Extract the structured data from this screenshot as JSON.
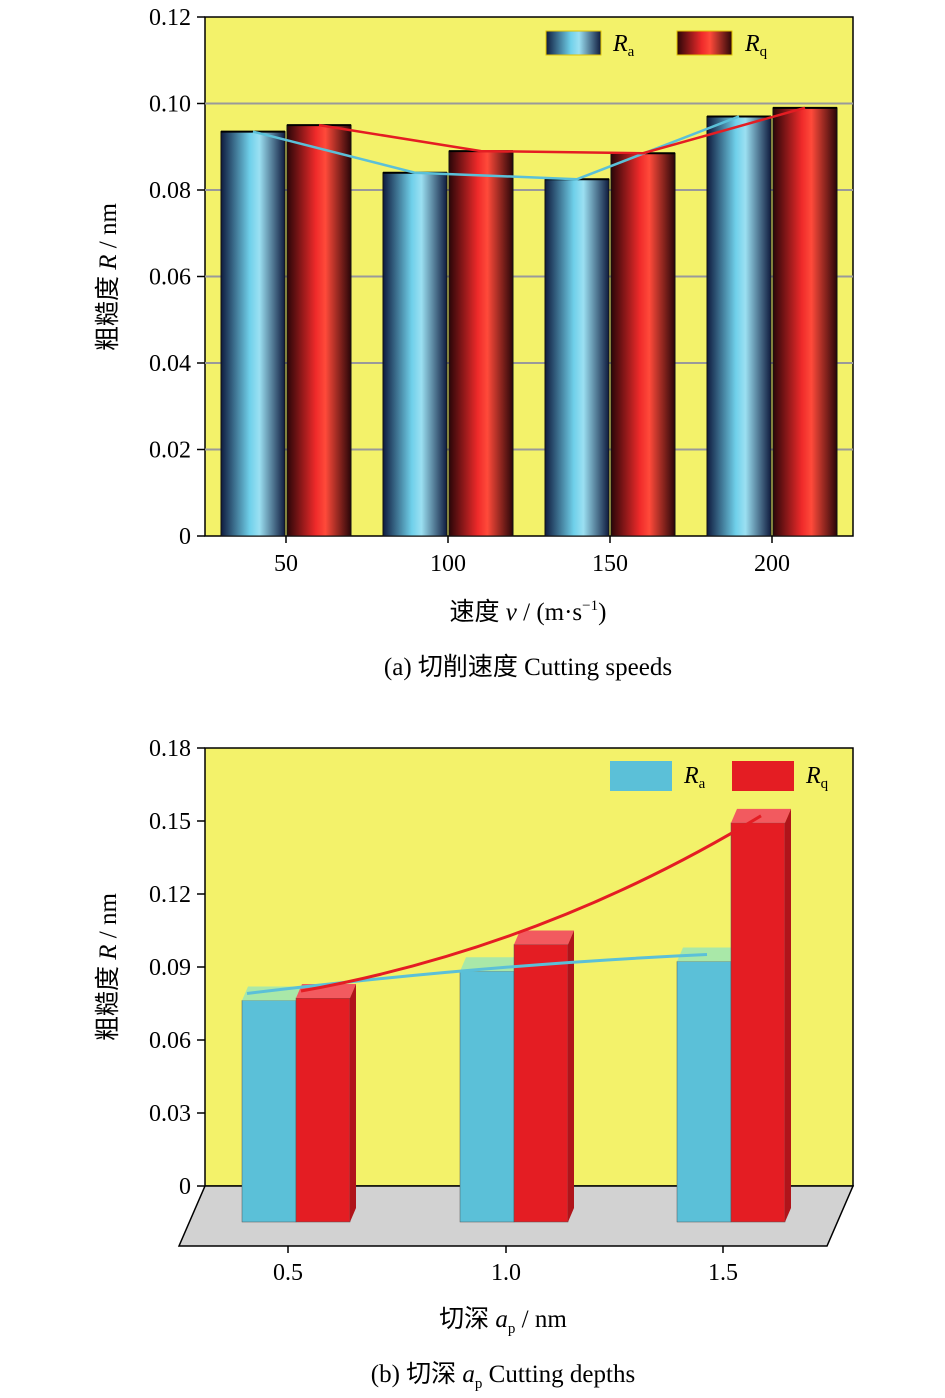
{
  "chart_data": [
    {
      "type": "bar",
      "panel": "a",
      "caption": "(a) 切削速度 Cutting speeds",
      "xlabel": "速度 v / (m·s⁻¹)",
      "ylabel": "粗糙度 R / nm",
      "categories": [
        "50",
        "100",
        "150",
        "200"
      ],
      "ylim": [
        0,
        0.12
      ],
      "yticks": [
        "0",
        "0.02",
        "0.04",
        "0.06",
        "0.08",
        "0.10",
        "0.12"
      ],
      "grid": true,
      "legend_position": "top-right",
      "series": [
        {
          "name": "Ra",
          "values": [
            0.0935,
            0.084,
            0.0825,
            0.097
          ]
        },
        {
          "name": "Rq",
          "values": [
            0.095,
            0.089,
            0.0885,
            0.099
          ]
        }
      ],
      "background": "#f3f26a"
    },
    {
      "type": "bar",
      "panel": "b",
      "caption": "(b) 切深 ap Cutting depths",
      "xlabel": "切深 ap / nm",
      "ylabel": "粗糙度 R / nm",
      "categories": [
        "0.5",
        "1.0",
        "1.5"
      ],
      "ylim": [
        0,
        0.18
      ],
      "yticks": [
        "0",
        "0.03",
        "0.06",
        "0.09",
        "0.12",
        "0.15",
        "0.18"
      ],
      "grid": false,
      "legend_position": "top-right",
      "series": [
        {
          "name": "Ra",
          "values": [
            0.082,
            0.094,
            0.098
          ]
        },
        {
          "name": "Rq",
          "values": [
            0.083,
            0.105,
            0.155
          ]
        }
      ],
      "background": "#f3f26a"
    }
  ],
  "colors": {
    "ra": "#5bc0d8",
    "rq": "#e41d23",
    "plot_bg": "#f3f26a",
    "floor": "#d2d2d2",
    "grid": "#9a9a9a"
  }
}
